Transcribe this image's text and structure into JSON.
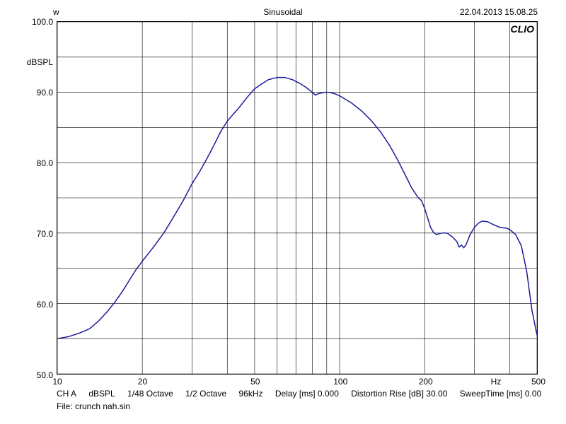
{
  "header": {
    "left_label": "w",
    "center_title": "Sinusoidal",
    "right_timestamp": "22.04.2013 15.08.25"
  },
  "watermark": "CLIO",
  "chart": {
    "type": "line",
    "background_color": "#ffffff",
    "grid_color": "#000000",
    "grid_stroke_width": 0.6,
    "border_color": "#000000",
    "line_color": "#1a1a99",
    "line_width": 1.5,
    "x_axis": {
      "scale": "log",
      "min": 10,
      "max": 500,
      "unit_label": "Hz",
      "major_ticks": [
        10,
        20,
        50,
        100,
        200,
        500
      ],
      "tick_labels": {
        "10": "10",
        "20": "20",
        "50": "50",
        "100": "100",
        "200": "200",
        "500": "500"
      },
      "minor_gridlines": [
        30,
        40,
        60,
        70,
        80,
        90,
        300,
        400
      ]
    },
    "y_axis": {
      "scale": "linear",
      "min": 50,
      "max": 100,
      "unit_label": "dBSPL",
      "ticks": [
        50,
        55,
        60,
        65,
        70,
        75,
        80,
        85,
        90,
        95,
        100
      ],
      "tick_labels": {
        "50": "50.0",
        "60": "60.0",
        "70": "70.0",
        "80": "80.0",
        "90": "90.0",
        "100": "100.0"
      }
    },
    "series": [
      {
        "name": "response",
        "points": [
          [
            10,
            55.0
          ],
          [
            11,
            55.3
          ],
          [
            12,
            55.8
          ],
          [
            13,
            56.4
          ],
          [
            14,
            57.5
          ],
          [
            15,
            58.8
          ],
          [
            16,
            60.2
          ],
          [
            17,
            61.7
          ],
          [
            18,
            63.3
          ],
          [
            19,
            64.8
          ],
          [
            20,
            66.0
          ],
          [
            22,
            68.1
          ],
          [
            24,
            70.2
          ],
          [
            26,
            72.5
          ],
          [
            28,
            74.7
          ],
          [
            30,
            77.0
          ],
          [
            32,
            78.8
          ],
          [
            34,
            80.7
          ],
          [
            36,
            82.6
          ],
          [
            38,
            84.5
          ],
          [
            40,
            85.9
          ],
          [
            42,
            86.9
          ],
          [
            44,
            87.8
          ],
          [
            46,
            88.8
          ],
          [
            48,
            89.7
          ],
          [
            50,
            90.5
          ],
          [
            53,
            91.2
          ],
          [
            56,
            91.8
          ],
          [
            60,
            92.1
          ],
          [
            64,
            92.1
          ],
          [
            68,
            91.8
          ],
          [
            72,
            91.3
          ],
          [
            76,
            90.7
          ],
          [
            80,
            90.0
          ],
          [
            82,
            89.6
          ],
          [
            84,
            89.8
          ],
          [
            88,
            90.0
          ],
          [
            92,
            90.0
          ],
          [
            96,
            89.8
          ],
          [
            100,
            89.5
          ],
          [
            110,
            88.5
          ],
          [
            120,
            87.3
          ],
          [
            130,
            85.9
          ],
          [
            140,
            84.3
          ],
          [
            150,
            82.5
          ],
          [
            160,
            80.5
          ],
          [
            170,
            78.4
          ],
          [
            180,
            76.4
          ],
          [
            190,
            75.0
          ],
          [
            195,
            74.6
          ],
          [
            200,
            73.5
          ],
          [
            210,
            70.8
          ],
          [
            215,
            70.1
          ],
          [
            220,
            69.8
          ],
          [
            230,
            70.0
          ],
          [
            240,
            70.0
          ],
          [
            250,
            69.5
          ],
          [
            260,
            68.8
          ],
          [
            265,
            68.0
          ],
          [
            270,
            68.3
          ],
          [
            275,
            67.9
          ],
          [
            280,
            68.3
          ],
          [
            290,
            69.8
          ],
          [
            300,
            70.8
          ],
          [
            310,
            71.4
          ],
          [
            320,
            71.7
          ],
          [
            335,
            71.6
          ],
          [
            350,
            71.2
          ],
          [
            370,
            70.8
          ],
          [
            390,
            70.7
          ],
          [
            400,
            70.5
          ],
          [
            420,
            69.8
          ],
          [
            440,
            68.2
          ],
          [
            460,
            64.5
          ],
          [
            480,
            59.0
          ],
          [
            500,
            55.5
          ]
        ]
      }
    ]
  },
  "footer": {
    "line1": {
      "channel": "CH A",
      "unit": "dBSPL",
      "res1": "1/48 Octave",
      "res2": "1/2 Octave",
      "sample_rate": "96kHz",
      "delay": "Delay [ms] 0.000",
      "distortion": "Distortion Rise [dB] 30.00",
      "sweep": "SweepTime [ms] 0.00"
    },
    "line2_label": "File:",
    "line2_value": "crunch nah.sin"
  }
}
